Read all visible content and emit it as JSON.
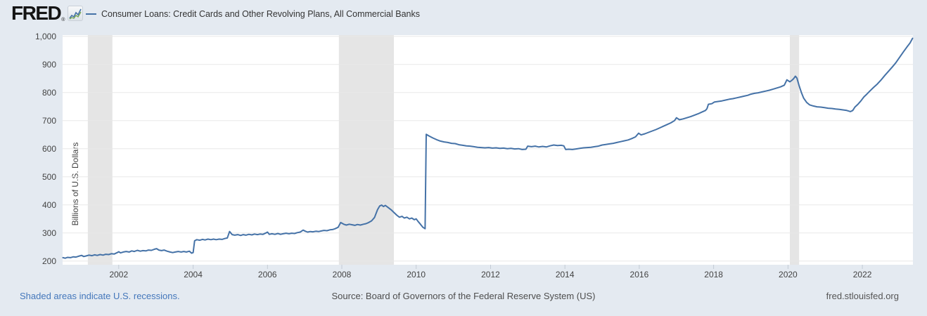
{
  "header": {
    "logo_text": "FRED",
    "registered_mark": "®",
    "legend_label": "Consumer Loans: Credit Cards and Other Revolving Plans, All Commercial Banks"
  },
  "footer": {
    "recession_note": "Shaded areas indicate U.S. recessions.",
    "source": "Source: Board of Governors of the Federal Reserve System (US)",
    "site": "fred.stlouisfed.org"
  },
  "colors": {
    "page_bg": "#e4eaf1",
    "plot_bg": "#ffffff",
    "line": "#4572a7",
    "recession_band": "#e5e5e5",
    "gridline": "#e8e8e8",
    "tick_mark": "#c3cbd5",
    "axis_text": "#434343",
    "link_blue": "#4477bb",
    "logo_blue": "#4572a7",
    "logo_green": "#79a755"
  },
  "chart_data": {
    "type": "line",
    "title": "Consumer Loans: Credit Cards and Other Revolving Plans, All Commercial Banks",
    "xlabel": "",
    "ylabel": "Billions of U.S. Dollars",
    "grid": true,
    "legend_position": "top-left",
    "x_axis": {
      "min": 2000.49,
      "max": 2023.36,
      "tick_years": [
        2002,
        2004,
        2006,
        2008,
        2010,
        2012,
        2014,
        2016,
        2018,
        2020,
        2022
      ]
    },
    "y_axis": {
      "min": 186.75,
      "max": 1004.25,
      "tick_values": [
        200,
        300,
        400,
        500,
        600,
        700,
        800,
        900,
        1000
      ],
      "tick_labels": [
        "200",
        "300",
        "400",
        "500",
        "600",
        "700",
        "800",
        "900",
        "1,000"
      ]
    },
    "recession_bands_years": [
      [
        2001.17,
        2001.83
      ],
      [
        2007.92,
        2009.4
      ],
      [
        2020.05,
        2020.3
      ]
    ],
    "series": [
      {
        "name": "Consumer Loans: Credit Cards and Other Revolving Plans, All Commercial Banks",
        "units": "Billions of U.S. Dollars",
        "points": [
          [
            2000.5,
            212
          ],
          [
            2000.56,
            210
          ],
          [
            2000.62,
            213
          ],
          [
            2000.7,
            212
          ],
          [
            2000.78,
            215
          ],
          [
            2000.85,
            214
          ],
          [
            2000.92,
            217
          ],
          [
            2001.0,
            220
          ],
          [
            2001.06,
            216
          ],
          [
            2001.12,
            218
          ],
          [
            2001.2,
            221
          ],
          [
            2001.28,
            219
          ],
          [
            2001.35,
            222
          ],
          [
            2001.42,
            220
          ],
          [
            2001.5,
            223
          ],
          [
            2001.58,
            221
          ],
          [
            2001.65,
            224
          ],
          [
            2001.73,
            223
          ],
          [
            2001.8,
            226
          ],
          [
            2001.88,
            225
          ],
          [
            2001.96,
            230
          ],
          [
            2002.0,
            233
          ],
          [
            2002.05,
            229
          ],
          [
            2002.12,
            232
          ],
          [
            2002.2,
            234
          ],
          [
            2002.28,
            232
          ],
          [
            2002.35,
            236
          ],
          [
            2002.42,
            234
          ],
          [
            2002.5,
            238
          ],
          [
            2002.58,
            235
          ],
          [
            2002.65,
            237
          ],
          [
            2002.73,
            236
          ],
          [
            2002.8,
            239
          ],
          [
            2002.88,
            238
          ],
          [
            2002.96,
            242
          ],
          [
            2003.02,
            244
          ],
          [
            2003.08,
            239
          ],
          [
            2003.15,
            237
          ],
          [
            2003.22,
            239
          ],
          [
            2003.3,
            235
          ],
          [
            2003.38,
            232
          ],
          [
            2003.45,
            230
          ],
          [
            2003.52,
            232
          ],
          [
            2003.6,
            234
          ],
          [
            2003.68,
            232
          ],
          [
            2003.75,
            234
          ],
          [
            2003.82,
            232
          ],
          [
            2003.9,
            235
          ],
          [
            2003.96,
            228
          ],
          [
            2004.0,
            230
          ],
          [
            2004.04,
            272
          ],
          [
            2004.1,
            276
          ],
          [
            2004.18,
            274
          ],
          [
            2004.25,
            277
          ],
          [
            2004.32,
            275
          ],
          [
            2004.4,
            278
          ],
          [
            2004.48,
            276
          ],
          [
            2004.55,
            278
          ],
          [
            2004.62,
            276
          ],
          [
            2004.7,
            278
          ],
          [
            2004.78,
            277
          ],
          [
            2004.85,
            280
          ],
          [
            2004.92,
            282
          ],
          [
            2004.98,
            305
          ],
          [
            2005.05,
            294
          ],
          [
            2005.12,
            292
          ],
          [
            2005.2,
            294
          ],
          [
            2005.28,
            291
          ],
          [
            2005.35,
            294
          ],
          [
            2005.42,
            292
          ],
          [
            2005.5,
            295
          ],
          [
            2005.58,
            293
          ],
          [
            2005.65,
            296
          ],
          [
            2005.73,
            294
          ],
          [
            2005.8,
            296
          ],
          [
            2005.88,
            295
          ],
          [
            2005.96,
            300
          ],
          [
            2006.0,
            303
          ],
          [
            2006.05,
            295
          ],
          [
            2006.12,
            297
          ],
          [
            2006.2,
            295
          ],
          [
            2006.28,
            298
          ],
          [
            2006.35,
            295
          ],
          [
            2006.42,
            297
          ],
          [
            2006.5,
            299
          ],
          [
            2006.58,
            297
          ],
          [
            2006.65,
            299
          ],
          [
            2006.73,
            298
          ],
          [
            2006.8,
            301
          ],
          [
            2006.88,
            303
          ],
          [
            2006.96,
            310
          ],
          [
            2007.02,
            306
          ],
          [
            2007.08,
            303
          ],
          [
            2007.15,
            305
          ],
          [
            2007.22,
            304
          ],
          [
            2007.3,
            306
          ],
          [
            2007.38,
            305
          ],
          [
            2007.45,
            307
          ],
          [
            2007.52,
            309
          ],
          [
            2007.6,
            308
          ],
          [
            2007.68,
            311
          ],
          [
            2007.75,
            312
          ],
          [
            2007.82,
            315
          ],
          [
            2007.9,
            320
          ],
          [
            2007.97,
            337
          ],
          [
            2008.05,
            331
          ],
          [
            2008.12,
            328
          ],
          [
            2008.2,
            331
          ],
          [
            2008.28,
            329
          ],
          [
            2008.35,
            327
          ],
          [
            2008.42,
            330
          ],
          [
            2008.5,
            328
          ],
          [
            2008.58,
            331
          ],
          [
            2008.65,
            333
          ],
          [
            2008.72,
            337
          ],
          [
            2008.8,
            343
          ],
          [
            2008.88,
            355
          ],
          [
            2008.96,
            383
          ],
          [
            2009.02,
            396
          ],
          [
            2009.07,
            399
          ],
          [
            2009.12,
            394
          ],
          [
            2009.17,
            398
          ],
          [
            2009.25,
            390
          ],
          [
            2009.33,
            382
          ],
          [
            2009.4,
            373
          ],
          [
            2009.48,
            363
          ],
          [
            2009.55,
            356
          ],
          [
            2009.62,
            359
          ],
          [
            2009.68,
            353
          ],
          [
            2009.75,
            356
          ],
          [
            2009.82,
            350
          ],
          [
            2009.88,
            353
          ],
          [
            2009.95,
            347
          ],
          [
            2010.0,
            350
          ],
          [
            2010.05,
            341
          ],
          [
            2010.12,
            330
          ],
          [
            2010.18,
            320
          ],
          [
            2010.24,
            315
          ],
          [
            2010.27,
            651
          ],
          [
            2010.35,
            645
          ],
          [
            2010.45,
            638
          ],
          [
            2010.55,
            632
          ],
          [
            2010.65,
            627
          ],
          [
            2010.75,
            624
          ],
          [
            2010.85,
            622
          ],
          [
            2010.95,
            619
          ],
          [
            2011.05,
            618
          ],
          [
            2011.15,
            614
          ],
          [
            2011.25,
            612
          ],
          [
            2011.35,
            610
          ],
          [
            2011.45,
            609
          ],
          [
            2011.55,
            607
          ],
          [
            2011.65,
            605
          ],
          [
            2011.75,
            604
          ],
          [
            2011.85,
            603
          ],
          [
            2011.95,
            604
          ],
          [
            2012.05,
            602
          ],
          [
            2012.15,
            603
          ],
          [
            2012.25,
            601
          ],
          [
            2012.35,
            602
          ],
          [
            2012.45,
            600
          ],
          [
            2012.55,
            601
          ],
          [
            2012.65,
            599
          ],
          [
            2012.75,
            600
          ],
          [
            2012.85,
            597
          ],
          [
            2012.95,
            598
          ],
          [
            2013.0,
            609
          ],
          [
            2013.1,
            607
          ],
          [
            2013.2,
            609
          ],
          [
            2013.3,
            606
          ],
          [
            2013.4,
            608
          ],
          [
            2013.5,
            606
          ],
          [
            2013.6,
            610
          ],
          [
            2013.7,
            613
          ],
          [
            2013.8,
            611
          ],
          [
            2013.9,
            612
          ],
          [
            2013.97,
            610
          ],
          [
            2014.02,
            597
          ],
          [
            2014.1,
            598
          ],
          [
            2014.2,
            597
          ],
          [
            2014.3,
            599
          ],
          [
            2014.4,
            601
          ],
          [
            2014.5,
            603
          ],
          [
            2014.6,
            604
          ],
          [
            2014.7,
            605
          ],
          [
            2014.8,
            607
          ],
          [
            2014.9,
            609
          ],
          [
            2015.0,
            613
          ],
          [
            2015.1,
            615
          ],
          [
            2015.2,
            617
          ],
          [
            2015.3,
            619
          ],
          [
            2015.4,
            622
          ],
          [
            2015.5,
            625
          ],
          [
            2015.6,
            628
          ],
          [
            2015.7,
            631
          ],
          [
            2015.8,
            636
          ],
          [
            2015.9,
            642
          ],
          [
            2015.98,
            655
          ],
          [
            2016.05,
            649
          ],
          [
            2016.15,
            653
          ],
          [
            2016.25,
            658
          ],
          [
            2016.35,
            663
          ],
          [
            2016.45,
            668
          ],
          [
            2016.55,
            674
          ],
          [
            2016.65,
            680
          ],
          [
            2016.75,
            686
          ],
          [
            2016.85,
            692
          ],
          [
            2016.95,
            700
          ],
          [
            2017.0,
            710
          ],
          [
            2017.08,
            703
          ],
          [
            2017.18,
            706
          ],
          [
            2017.28,
            710
          ],
          [
            2017.38,
            714
          ],
          [
            2017.48,
            719
          ],
          [
            2017.58,
            724
          ],
          [
            2017.68,
            730
          ],
          [
            2017.78,
            736
          ],
          [
            2017.82,
            742
          ],
          [
            2017.86,
            758
          ],
          [
            2017.95,
            760
          ],
          [
            2018.02,
            766
          ],
          [
            2018.12,
            768
          ],
          [
            2018.22,
            770
          ],
          [
            2018.32,
            773
          ],
          [
            2018.42,
            776
          ],
          [
            2018.52,
            778
          ],
          [
            2018.62,
            781
          ],
          [
            2018.72,
            784
          ],
          [
            2018.82,
            787
          ],
          [
            2018.92,
            790
          ],
          [
            2019.0,
            794
          ],
          [
            2019.1,
            797
          ],
          [
            2019.2,
            799
          ],
          [
            2019.3,
            802
          ],
          [
            2019.4,
            805
          ],
          [
            2019.5,
            808
          ],
          [
            2019.6,
            812
          ],
          [
            2019.7,
            816
          ],
          [
            2019.8,
            820
          ],
          [
            2019.9,
            826
          ],
          [
            2019.97,
            845
          ],
          [
            2020.05,
            838
          ],
          [
            2020.1,
            843
          ],
          [
            2020.15,
            849
          ],
          [
            2020.2,
            858
          ],
          [
            2020.24,
            851
          ],
          [
            2020.3,
            824
          ],
          [
            2020.36,
            800
          ],
          [
            2020.42,
            780
          ],
          [
            2020.5,
            765
          ],
          [
            2020.58,
            756
          ],
          [
            2020.68,
            752
          ],
          [
            2020.78,
            749
          ],
          [
            2020.88,
            748
          ],
          [
            2020.98,
            746
          ],
          [
            2021.08,
            744
          ],
          [
            2021.18,
            743
          ],
          [
            2021.28,
            741
          ],
          [
            2021.38,
            740
          ],
          [
            2021.48,
            738
          ],
          [
            2021.58,
            736
          ],
          [
            2021.68,
            732
          ],
          [
            2021.74,
            736
          ],
          [
            2021.8,
            748
          ],
          [
            2021.88,
            758
          ],
          [
            2021.96,
            770
          ],
          [
            2022.04,
            784
          ],
          [
            2022.12,
            794
          ],
          [
            2022.2,
            805
          ],
          [
            2022.3,
            818
          ],
          [
            2022.4,
            830
          ],
          [
            2022.5,
            844
          ],
          [
            2022.6,
            860
          ],
          [
            2022.7,
            875
          ],
          [
            2022.8,
            890
          ],
          [
            2022.9,
            906
          ],
          [
            2023.0,
            925
          ],
          [
            2023.1,
            944
          ],
          [
            2023.2,
            962
          ],
          [
            2023.28,
            976
          ],
          [
            2023.35,
            993
          ]
        ]
      }
    ]
  }
}
